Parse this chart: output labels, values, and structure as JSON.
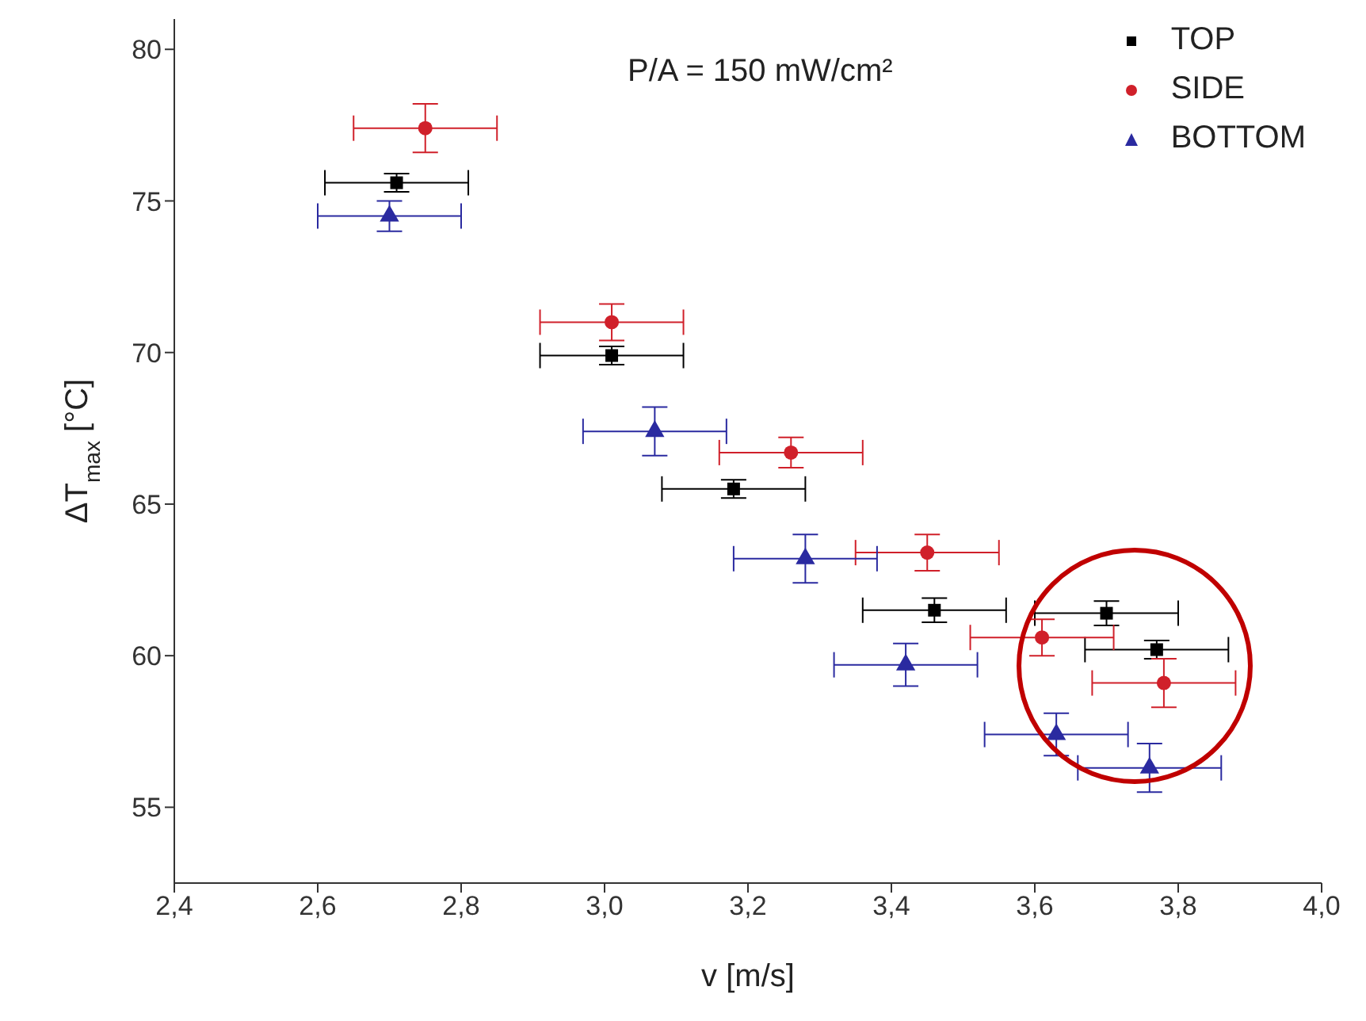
{
  "chart_data": {
    "type": "scatter",
    "xlabel": "v [m/s]",
    "ylabel": "ΔT$_{max}$ [°C]",
    "annotations": [
      "P/A = 150 mW/cm²"
    ],
    "xlim": [
      2.4,
      4.0
    ],
    "xticks": [
      {
        "value": 2.4,
        "label": "2,4"
      },
      {
        "value": 2.6,
        "label": "2,6"
      },
      {
        "value": 2.8,
        "label": "2,8"
      },
      {
        "value": 3.0,
        "label": "3,0"
      },
      {
        "value": 3.2,
        "label": "3,2"
      },
      {
        "value": 3.4,
        "label": "3,4"
      },
      {
        "value": 3.6,
        "label": "3,6"
      },
      {
        "value": 3.8,
        "label": "3,8"
      },
      {
        "value": 4.0,
        "label": "4,0"
      }
    ],
    "ylim": [
      52.5,
      81
    ],
    "yticks": [
      55,
      60,
      65,
      70,
      75,
      80
    ],
    "grid": false,
    "legend": "top right",
    "series": [
      {
        "name": "TOP",
        "color": "#000000",
        "marker": "square",
        "x": [
          2.71,
          3.01,
          3.18,
          3.46,
          3.7,
          3.77
        ],
        "values": [
          75.6,
          69.9,
          65.5,
          61.5,
          61.4,
          60.2
        ],
        "errors": [
          0.3,
          0.3,
          0.3,
          0.4,
          0.4,
          0.3
        ],
        "xerrors": [
          0.1,
          0.1,
          0.1,
          0.1,
          0.1,
          0.1
        ]
      },
      {
        "name": "SIDE",
        "color": "#d0202a",
        "marker": "circle",
        "x": [
          2.75,
          3.01,
          3.26,
          3.45,
          3.61,
          3.78
        ],
        "values": [
          77.4,
          71.0,
          66.7,
          63.4,
          60.6,
          59.1
        ],
        "errors": [
          0.8,
          0.6,
          0.5,
          0.6,
          0.6,
          0.8
        ],
        "xerrors": [
          0.1,
          0.1,
          0.1,
          0.1,
          0.1,
          0.1
        ]
      },
      {
        "name": "BOTTOM",
        "color": "#2a2aa0",
        "marker": "triangle",
        "x": [
          2.7,
          3.07,
          3.28,
          3.42,
          3.63,
          3.76
        ],
        "values": [
          74.5,
          67.4,
          63.2,
          59.7,
          57.4,
          56.3
        ],
        "errors": [
          0.5,
          0.8,
          0.8,
          0.7,
          0.7,
          0.8
        ],
        "xerrors": [
          0.1,
          0.1,
          0.1,
          0.1,
          0.1,
          0.1
        ]
      }
    ]
  }
}
